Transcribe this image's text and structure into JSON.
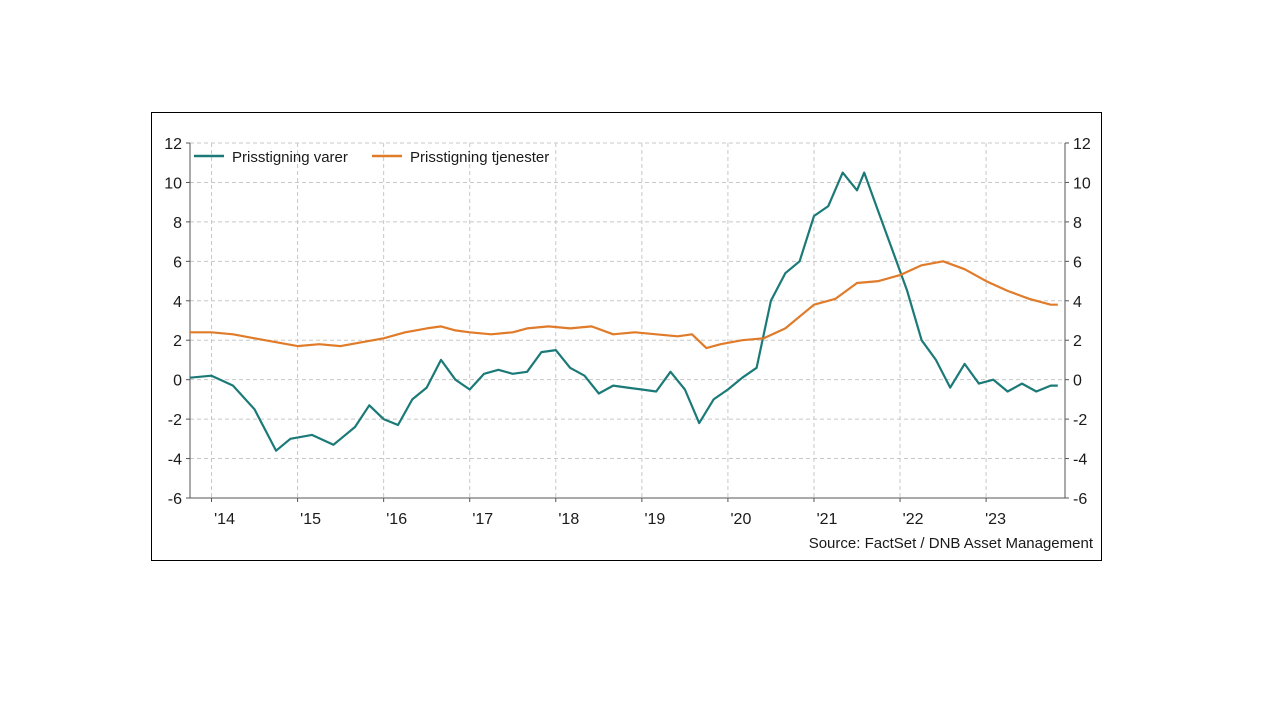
{
  "chart_data": {
    "type": "line",
    "title": "",
    "xlabel": "",
    "ylabel": "",
    "ylim": [
      -6,
      12
    ],
    "yticks": [
      -6,
      -4,
      -2,
      0,
      2,
      4,
      6,
      8,
      10,
      12
    ],
    "ytick_labels": [
      "-6",
      "-4",
      "-2",
      "0",
      "2",
      "4",
      "6",
      "8",
      "10",
      "12"
    ],
    "xlim": [
      "2013-10",
      "2023-12"
    ],
    "xtick_labels": [
      "'14",
      "'15",
      "'16",
      "'17",
      "'18",
      "'19",
      "'20",
      "'21",
      "'22",
      "'23"
    ],
    "grid": true,
    "legend": "top-left",
    "source": "Source: FactSet / DNB Asset Management",
    "series": [
      {
        "name": "Prisstigning varer",
        "color": "#1b7a78",
        "x": [
          "2013-10",
          "2014-01",
          "2014-04",
          "2014-07",
          "2014-10",
          "2014-12",
          "2015-03",
          "2015-06",
          "2015-09",
          "2015-11",
          "2016-01",
          "2016-03",
          "2016-05",
          "2016-07",
          "2016-09",
          "2016-11",
          "2017-01",
          "2017-03",
          "2017-05",
          "2017-07",
          "2017-09",
          "2017-11",
          "2018-01",
          "2018-03",
          "2018-05",
          "2018-07",
          "2018-09",
          "2018-11",
          "2019-01",
          "2019-03",
          "2019-05",
          "2019-07",
          "2019-09",
          "2019-11",
          "2020-01",
          "2020-03",
          "2020-05",
          "2020-07",
          "2020-09",
          "2020-11",
          "2021-01",
          "2021-03",
          "2021-05",
          "2021-07",
          "2021-08",
          "2021-10",
          "2021-12",
          "2022-02",
          "2022-04",
          "2022-06",
          "2022-08",
          "2022-10",
          "2022-12",
          "2023-02",
          "2023-04",
          "2023-06",
          "2023-08",
          "2023-10",
          "2023-11"
        ],
        "values": [
          0.1,
          0.2,
          -0.3,
          -1.5,
          -3.6,
          -3.0,
          -2.8,
          -3.3,
          -2.4,
          -1.3,
          -2.0,
          -2.3,
          -1.0,
          -0.4,
          1.0,
          0.0,
          -0.5,
          0.3,
          0.5,
          0.3,
          0.4,
          1.4,
          1.5,
          0.6,
          0.2,
          -0.7,
          -0.3,
          -0.4,
          -0.5,
          -0.6,
          0.4,
          -0.5,
          -2.2,
          -1.0,
          -0.5,
          0.1,
          0.6,
          4.0,
          5.4,
          6.0,
          8.3,
          8.8,
          10.5,
          9.6,
          10.5,
          8.5,
          6.5,
          4.5,
          2.0,
          1.0,
          -0.4,
          0.8,
          -0.2,
          0.0,
          -0.6,
          -0.2,
          -0.6,
          -0.3,
          -0.3
        ],
        "values_note": ""
      },
      {
        "name": "Prisstigning tjenester",
        "color": "#e07b2a",
        "x": [
          "2013-10",
          "2014-01",
          "2014-04",
          "2014-07",
          "2014-10",
          "2015-01",
          "2015-04",
          "2015-07",
          "2015-10",
          "2016-01",
          "2016-04",
          "2016-07",
          "2016-09",
          "2016-11",
          "2017-01",
          "2017-04",
          "2017-07",
          "2017-09",
          "2017-12",
          "2018-03",
          "2018-06",
          "2018-09",
          "2018-12",
          "2019-03",
          "2019-06",
          "2019-08",
          "2019-10",
          "2019-12",
          "2020-03",
          "2020-06",
          "2020-09",
          "2021-01",
          "2021-04",
          "2021-07",
          "2021-10",
          "2022-01",
          "2022-04",
          "2022-07",
          "2022-10",
          "2023-01",
          "2023-04",
          "2023-07",
          "2023-10",
          "2023-11"
        ],
        "values": [
          2.4,
          2.4,
          2.3,
          2.1,
          1.9,
          1.7,
          1.8,
          1.7,
          1.9,
          2.1,
          2.4,
          2.6,
          2.7,
          2.5,
          2.4,
          2.3,
          2.4,
          2.6,
          2.7,
          2.6,
          2.7,
          2.3,
          2.4,
          2.3,
          2.2,
          2.3,
          1.6,
          1.8,
          2.0,
          2.1,
          2.6,
          3.8,
          4.1,
          4.9,
          5.0,
          5.3,
          5.8,
          6.0,
          5.6,
          5.0,
          4.5,
          4.1,
          3.8,
          3.8
        ]
      }
    ]
  }
}
